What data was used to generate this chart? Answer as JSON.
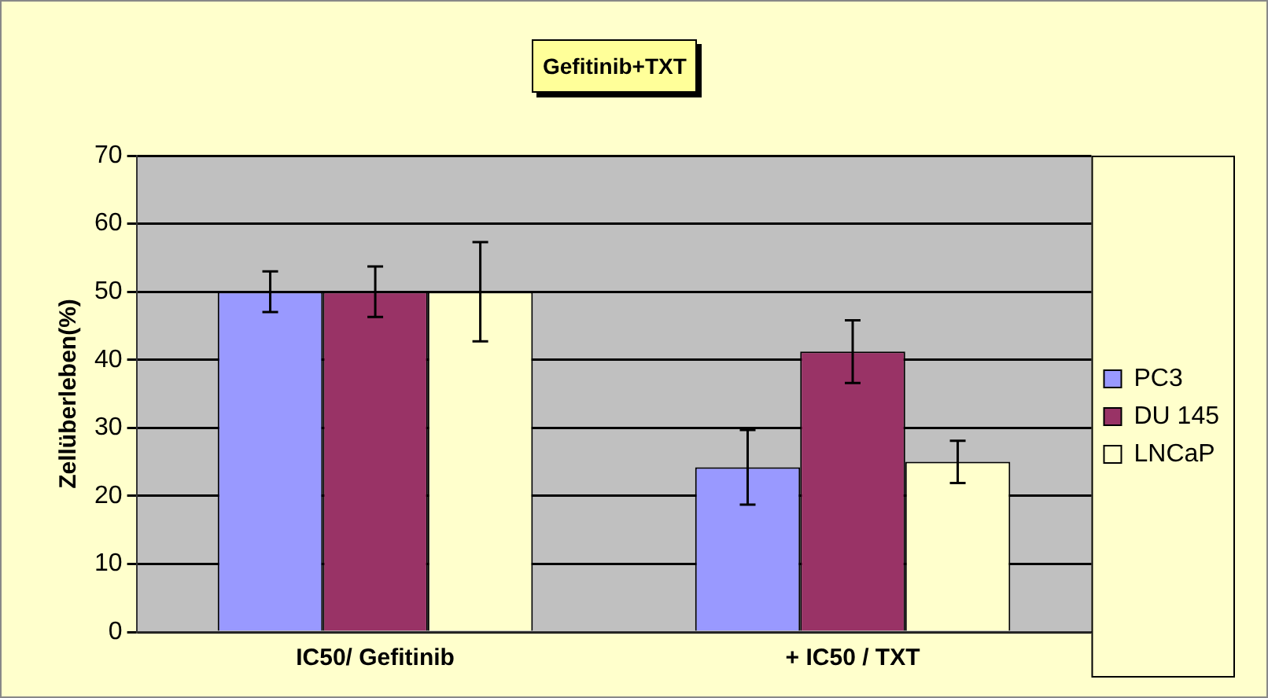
{
  "chart_data": {
    "type": "bar",
    "title": "Gefitinib+TXT",
    "ylabel": "Zellüberleben(%)",
    "categories": [
      "IC50/ Gefitinib",
      "+ IC50 / TXT"
    ],
    "series": [
      {
        "name": "PC3",
        "color": "#9999ff",
        "values": [
          50,
          24.2
        ],
        "errors": [
          3,
          5.5
        ]
      },
      {
        "name": "DU 145",
        "color": "#993366",
        "values": [
          50,
          41.2
        ],
        "errors": [
          3.7,
          4.6
        ]
      },
      {
        "name": "LNCaP",
        "color": "#ffffcc",
        "values": [
          50,
          25
        ],
        "errors": [
          7.3,
          3.1
        ]
      }
    ],
    "ylim": [
      0,
      70
    ],
    "yticks": [
      0,
      10,
      20,
      30,
      40,
      50,
      60,
      70
    ],
    "grid": "y",
    "legend": "right"
  }
}
